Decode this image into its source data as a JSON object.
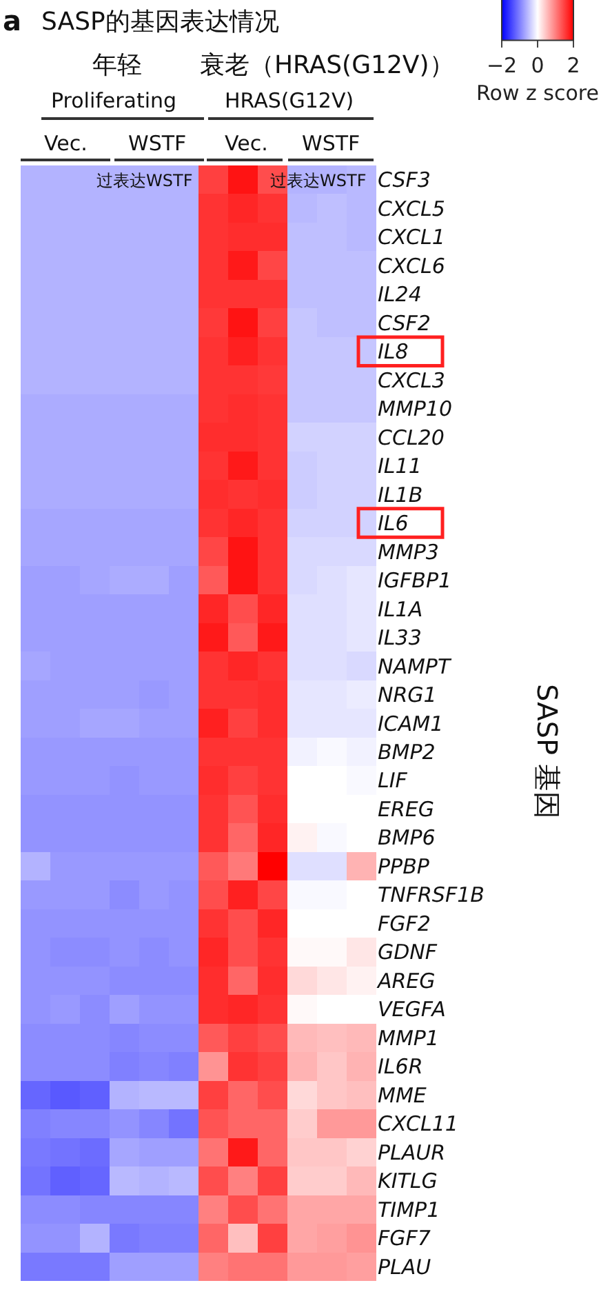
{
  "chart_data": {
    "type": "heatmap",
    "title": "SASP的基因表达情况",
    "ylabel": "SASP 基因",
    "clabel": "Row z score",
    "clim": [
      -2,
      2
    ],
    "cticks": [
      {
        "value": -2,
        "label": "−2"
      },
      0,
      2
    ],
    "annotations": [
      "a",
      "年轻",
      "衰老（HRAS(G12V)）",
      "Proliferating",
      "HRAS(G12V)",
      "Vec.",
      "WSTF",
      "Vec.",
      "WSTF",
      "过表达WSTF",
      "过表达WSTF"
    ],
    "categories": [
      null,
      null,
      null,
      null,
      null,
      null,
      null,
      null,
      null,
      null,
      null,
      null
    ],
    "y_categories": [
      "CSF3",
      "CXCL5",
      "CXCL1",
      "CXCL6",
      "IL24",
      "CSF2",
      "IL8",
      "CXCL3",
      "MMP10",
      "CCL20",
      "IL11",
      "IL1B",
      "IL6",
      "MMP3",
      "IGFBP1",
      "IL1A",
      "IL33",
      "NAMPT",
      "NRG1",
      "ICAM1",
      "BMP2",
      "LIF",
      "EREG",
      "BMP6",
      "PPBP",
      "TNFRSF1B",
      "FGF2",
      "GDNF",
      "AREG",
      "VEGFA",
      "MMP1",
      "IL6R",
      "MME",
      "CXCL11",
      "PLAUR",
      "KITLG",
      "TIMP1",
      "FGF7",
      "PLAU"
    ],
    "cells": [
      [
        -0.6,
        -0.6,
        -0.6,
        -0.6,
        -0.6,
        -0.6,
        1.5,
        1.85,
        1.4,
        -0.6,
        -0.6,
        -0.55
      ],
      [
        -0.6,
        -0.6,
        -0.6,
        -0.6,
        -0.6,
        -0.6,
        1.6,
        1.7,
        1.6,
        -0.55,
        -0.5,
        -0.55
      ],
      [
        -0.6,
        -0.6,
        -0.6,
        -0.6,
        -0.6,
        -0.6,
        1.6,
        1.65,
        1.65,
        -0.5,
        -0.5,
        -0.55
      ],
      [
        -0.6,
        -0.6,
        -0.6,
        -0.6,
        -0.6,
        -0.6,
        1.6,
        1.8,
        1.45,
        -0.5,
        -0.5,
        -0.5
      ],
      [
        -0.6,
        -0.6,
        -0.6,
        -0.6,
        -0.6,
        -0.6,
        1.6,
        1.6,
        1.6,
        -0.5,
        -0.5,
        -0.5
      ],
      [
        -0.6,
        -0.6,
        -0.6,
        -0.6,
        -0.6,
        -0.6,
        1.55,
        1.85,
        1.5,
        -0.45,
        -0.5,
        -0.5
      ],
      [
        -0.6,
        -0.6,
        -0.6,
        -0.6,
        -0.6,
        -0.6,
        1.6,
        1.75,
        1.6,
        -0.45,
        -0.45,
        -0.45
      ],
      [
        -0.6,
        -0.6,
        -0.6,
        -0.6,
        -0.6,
        -0.6,
        1.6,
        1.6,
        1.55,
        -0.45,
        -0.45,
        -0.45
      ],
      [
        -0.65,
        -0.65,
        -0.65,
        -0.65,
        -0.65,
        -0.65,
        1.6,
        1.65,
        1.6,
        -0.45,
        -0.45,
        -0.45
      ],
      [
        -0.65,
        -0.65,
        -0.65,
        -0.65,
        -0.65,
        -0.65,
        1.65,
        1.65,
        1.6,
        -0.35,
        -0.35,
        -0.35
      ],
      [
        -0.65,
        -0.65,
        -0.65,
        -0.65,
        -0.65,
        -0.65,
        1.6,
        1.8,
        1.6,
        -0.4,
        -0.35,
        -0.35
      ],
      [
        -0.65,
        -0.65,
        -0.65,
        -0.65,
        -0.65,
        -0.65,
        1.65,
        1.6,
        1.65,
        -0.4,
        -0.35,
        -0.35
      ],
      [
        -0.7,
        -0.7,
        -0.7,
        -0.7,
        -0.7,
        -0.7,
        1.6,
        1.7,
        1.6,
        -0.35,
        -0.35,
        -0.35
      ],
      [
        -0.7,
        -0.7,
        -0.7,
        -0.7,
        -0.7,
        -0.7,
        1.45,
        1.85,
        1.6,
        -0.3,
        -0.3,
        -0.3
      ],
      [
        -0.75,
        -0.75,
        -0.7,
        -0.65,
        -0.65,
        -0.75,
        1.3,
        1.85,
        1.6,
        -0.3,
        -0.25,
        -0.2
      ],
      [
        -0.75,
        -0.75,
        -0.75,
        -0.75,
        -0.75,
        -0.75,
        1.7,
        1.4,
        1.7,
        -0.25,
        -0.25,
        -0.2
      ],
      [
        -0.75,
        -0.75,
        -0.75,
        -0.75,
        -0.75,
        -0.75,
        1.8,
        1.3,
        1.8,
        -0.25,
        -0.25,
        -0.2
      ],
      [
        -0.7,
        -0.75,
        -0.75,
        -0.75,
        -0.75,
        -0.75,
        1.6,
        1.7,
        1.6,
        -0.25,
        -0.25,
        -0.3
      ],
      [
        -0.75,
        -0.75,
        -0.75,
        -0.75,
        -0.8,
        -0.75,
        1.6,
        1.6,
        1.65,
        -0.2,
        -0.2,
        -0.15
      ],
      [
        -0.75,
        -0.75,
        -0.7,
        -0.7,
        -0.75,
        -0.75,
        1.75,
        1.5,
        1.65,
        -0.2,
        -0.2,
        -0.2
      ],
      [
        -0.8,
        -0.8,
        -0.8,
        -0.8,
        -0.8,
        -0.8,
        1.6,
        1.6,
        1.6,
        -0.1,
        -0.05,
        -0.1
      ],
      [
        -0.8,
        -0.8,
        -0.8,
        -0.85,
        -0.8,
        -0.8,
        1.65,
        1.5,
        1.6,
        0,
        0,
        -0.05
      ],
      [
        -0.85,
        -0.85,
        -0.85,
        -0.85,
        -0.85,
        -0.85,
        1.6,
        1.35,
        1.65,
        0,
        0,
        0
      ],
      [
        -0.85,
        -0.85,
        -0.85,
        -0.85,
        -0.85,
        -0.85,
        1.6,
        1.2,
        1.7,
        0.1,
        -0.05,
        0
      ],
      [
        -0.6,
        -0.8,
        -0.8,
        -0.8,
        -0.8,
        -0.8,
        1.3,
        1.05,
        2.0,
        -0.25,
        -0.25,
        0.6
      ],
      [
        -0.8,
        -0.8,
        -0.8,
        -0.9,
        -0.8,
        -0.85,
        1.4,
        1.75,
        1.45,
        -0.05,
        -0.05,
        0
      ],
      [
        -0.85,
        -0.85,
        -0.85,
        -0.85,
        -0.85,
        -0.85,
        1.6,
        1.4,
        1.7,
        0,
        0,
        0
      ],
      [
        -0.85,
        -0.9,
        -0.9,
        -0.85,
        -0.9,
        -0.85,
        1.7,
        1.4,
        1.6,
        0.05,
        0.05,
        0.2
      ],
      [
        -0.85,
        -0.85,
        -0.85,
        -0.9,
        -0.9,
        -0.9,
        1.65,
        1.2,
        1.65,
        0.3,
        0.2,
        0.1
      ],
      [
        -0.85,
        -0.8,
        -0.9,
        -0.75,
        -0.85,
        -0.85,
        1.65,
        1.7,
        1.6,
        0.05,
        0,
        0
      ],
      [
        -0.9,
        -0.9,
        -0.9,
        -0.95,
        -0.9,
        -0.9,
        1.3,
        1.5,
        1.4,
        0.55,
        0.5,
        0.55
      ],
      [
        -0.9,
        -0.9,
        -0.9,
        -1.0,
        -0.95,
        -1.0,
        0.85,
        1.6,
        1.5,
        0.6,
        0.45,
        0.6
      ],
      [
        -1.2,
        -1.3,
        -1.25,
        -0.6,
        -0.55,
        -0.55,
        1.5,
        1.2,
        1.4,
        0.3,
        0.45,
        0.5
      ],
      [
        -1.0,
        -0.95,
        -0.95,
        -0.85,
        -0.95,
        -1.1,
        1.35,
        1.2,
        1.2,
        0.4,
        0.8,
        0.8
      ],
      [
        -1.05,
        -1.1,
        -1.15,
        -0.7,
        -0.75,
        -0.75,
        1.1,
        1.8,
        1.2,
        0.45,
        0.45,
        0.35
      ],
      [
        -1.1,
        -1.25,
        -1.2,
        -0.55,
        -0.6,
        -0.55,
        1.4,
        1.0,
        1.5,
        0.4,
        0.4,
        0.55
      ],
      [
        -0.9,
        -0.9,
        -0.95,
        -0.95,
        -0.95,
        -0.95,
        1.0,
        1.4,
        1.1,
        0.7,
        0.7,
        0.7
      ],
      [
        -0.85,
        -0.85,
        -0.6,
        -1.05,
        -1.0,
        -1.0,
        1.2,
        0.5,
        1.5,
        0.7,
        0.75,
        0.85
      ],
      [
        -1.05,
        -1.05,
        -1.05,
        -0.75,
        -0.75,
        -0.75,
        1.0,
        1.1,
        1.1,
        0.8,
        0.8,
        0.75
      ]
    ]
  }
}
